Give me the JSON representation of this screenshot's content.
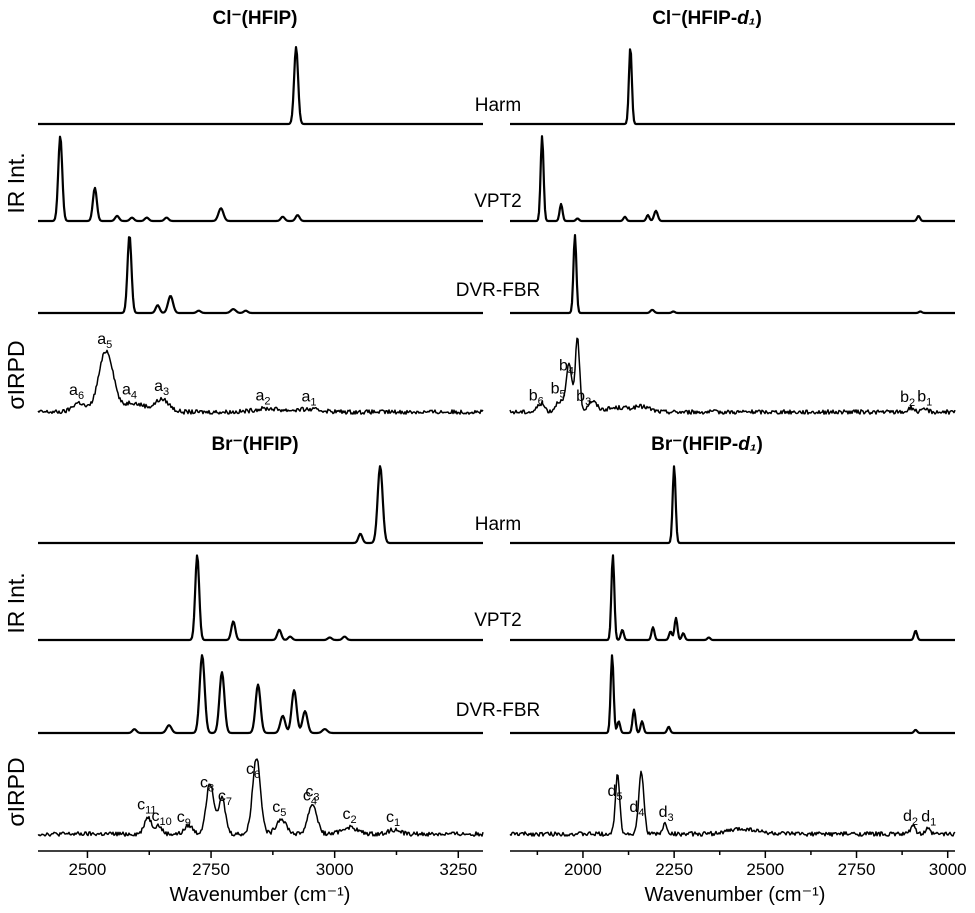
{
  "chart_data": {
    "type": "line",
    "xlabel": "Wavenumber (cm⁻¹)",
    "ylabel_ir": "IR Int.",
    "ylabel_irpd": "σIRPD",
    "panels": [
      {
        "id": "cl_hfip",
        "title_base": "Cl⁻(HFIP)",
        "title_suffix": "",
        "axis": 0,
        "traces": [
          {
            "name": "Harm",
            "peaks": [
              {
                "x": 2922,
                "h": 1.0,
                "w": 4
              }
            ]
          },
          {
            "name": "VPT2",
            "peaks": [
              {
                "x": 2445,
                "h": 1.0,
                "w": 4
              },
              {
                "x": 2515,
                "h": 0.39,
                "w": 4
              },
              {
                "x": 2560,
                "h": 0.06,
                "w": 4
              },
              {
                "x": 2590,
                "h": 0.04,
                "w": 4
              },
              {
                "x": 2620,
                "h": 0.04,
                "w": 4
              },
              {
                "x": 2660,
                "h": 0.04,
                "w": 4
              },
              {
                "x": 2770,
                "h": 0.15,
                "w": 5
              },
              {
                "x": 2895,
                "h": 0.05,
                "w": 4
              },
              {
                "x": 2925,
                "h": 0.07,
                "w": 4
              }
            ]
          },
          {
            "name": "DVR-FBR",
            "peaks": [
              {
                "x": 2585,
                "h": 1.0,
                "w": 4
              },
              {
                "x": 2642,
                "h": 0.1,
                "w": 4
              },
              {
                "x": 2668,
                "h": 0.22,
                "w": 5
              },
              {
                "x": 2725,
                "h": 0.03,
                "w": 4
              },
              {
                "x": 2795,
                "h": 0.05,
                "w": 5
              },
              {
                "x": 2820,
                "h": 0.03,
                "w": 4
              }
            ]
          },
          {
            "name": "σIRPD",
            "peaks": [
              {
                "x": 2482,
                "h": 0.11,
                "w": 12
              },
              {
                "x": 2538,
                "h": 0.72,
                "w": 15
              },
              {
                "x": 2588,
                "h": 0.11,
                "w": 12
              },
              {
                "x": 2612,
                "h": 0.06,
                "w": 10
              },
              {
                "x": 2650,
                "h": 0.15,
                "w": 15
              },
              {
                "x": 2862,
                "h": 0.04,
                "w": 25
              },
              {
                "x": 2945,
                "h": 0.03,
                "w": 30
              }
            ]
          }
        ],
        "labels": [
          {
            "trace": 3,
            "x": 2478,
            "text": "a",
            "sub": "6"
          },
          {
            "trace": 3,
            "x": 2535,
            "text": "a",
            "sub": "5"
          },
          {
            "trace": 3,
            "x": 2585,
            "text": "a",
            "sub": "4"
          },
          {
            "trace": 3,
            "x": 2650,
            "text": "a",
            "sub": "3"
          },
          {
            "trace": 3,
            "x": 2855,
            "text": "a",
            "sub": "2"
          },
          {
            "trace": 3,
            "x": 2948,
            "text": "a",
            "sub": "1"
          }
        ]
      },
      {
        "id": "cl_hfip_d1",
        "title_base": "Cl⁻(HFIP-",
        "title_suffix": "d₁)",
        "axis": 1,
        "traces": [
          {
            "name": "",
            "peaks": [
              {
                "x": 2130,
                "h": 1.0,
                "w": 4
              }
            ]
          },
          {
            "name": "",
            "peaks": [
              {
                "x": 1888,
                "h": 1.0,
                "w": 4
              },
              {
                "x": 1940,
                "h": 0.2,
                "w": 4
              },
              {
                "x": 1985,
                "h": 0.03,
                "w": 4
              },
              {
                "x": 2115,
                "h": 0.05,
                "w": 4
              },
              {
                "x": 2178,
                "h": 0.07,
                "w": 4
              },
              {
                "x": 2200,
                "h": 0.12,
                "w": 5
              },
              {
                "x": 2920,
                "h": 0.06,
                "w": 4
              }
            ]
          },
          {
            "name": "",
            "peaks": [
              {
                "x": 1978,
                "h": 1.0,
                "w": 4
              },
              {
                "x": 2190,
                "h": 0.04,
                "w": 5
              },
              {
                "x": 2248,
                "h": 0.02,
                "w": 4
              },
              {
                "x": 2925,
                "h": 0.02,
                "w": 4
              }
            ]
          },
          {
            "name": "",
            "peaks": [
              {
                "x": 1885,
                "h": 0.1,
                "w": 10
              },
              {
                "x": 1935,
                "h": 0.13,
                "w": 10
              },
              {
                "x": 1962,
                "h": 0.55,
                "w": 8
              },
              {
                "x": 1985,
                "h": 0.85,
                "w": 6
              },
              {
                "x": 2025,
                "h": 0.12,
                "w": 12
              },
              {
                "x": 2100,
                "h": 0.05,
                "w": 40
              },
              {
                "x": 2165,
                "h": 0.05,
                "w": 20
              },
              {
                "x": 2900,
                "h": 0.05,
                "w": 8
              },
              {
                "x": 2940,
                "h": 0.03,
                "w": 8
              }
            ]
          }
        ],
        "labels": [
          {
            "trace": 3,
            "x": 1872,
            "text": "b",
            "sub": "6"
          },
          {
            "trace": 3,
            "x": 1932,
            "text": "b",
            "sub": "5"
          },
          {
            "trace": 3,
            "x": 1955,
            "text": "b",
            "sub": "4"
          },
          {
            "trace": 3,
            "x": 2002,
            "text": "b",
            "sub": "3"
          },
          {
            "trace": 3,
            "x": 2890,
            "text": "b",
            "sub": "2"
          },
          {
            "trace": 3,
            "x": 2937,
            "text": "b",
            "sub": "1"
          }
        ]
      },
      {
        "id": "br_hfip",
        "title_base": "Br⁻(HFIP)",
        "title_suffix": "",
        "axis": 0,
        "traces": [
          {
            "name": "Harm",
            "peaks": [
              {
                "x": 3052,
                "h": 0.12,
                "w": 4
              },
              {
                "x": 3092,
                "h": 1.0,
                "w": 5
              }
            ]
          },
          {
            "name": "VPT2",
            "peaks": [
              {
                "x": 2722,
                "h": 1.0,
                "w": 4
              },
              {
                "x": 2795,
                "h": 0.22,
                "w": 4
              },
              {
                "x": 2888,
                "h": 0.12,
                "w": 4
              },
              {
                "x": 2910,
                "h": 0.04,
                "w": 4
              },
              {
                "x": 2990,
                "h": 0.03,
                "w": 4
              },
              {
                "x": 3020,
                "h": 0.04,
                "w": 4
              }
            ]
          },
          {
            "name": "DVR-FBR",
            "peaks": [
              {
                "x": 2595,
                "h": 0.05,
                "w": 4
              },
              {
                "x": 2665,
                "h": 0.1,
                "w": 5
              },
              {
                "x": 2732,
                "h": 1.0,
                "w": 5
              },
              {
                "x": 2772,
                "h": 0.78,
                "w": 5
              },
              {
                "x": 2845,
                "h": 0.62,
                "w": 5
              },
              {
                "x": 2895,
                "h": 0.22,
                "w": 5
              },
              {
                "x": 2918,
                "h": 0.55,
                "w": 5
              },
              {
                "x": 2940,
                "h": 0.28,
                "w": 5
              },
              {
                "x": 2980,
                "h": 0.05,
                "w": 5
              }
            ]
          },
          {
            "name": "σIRPD",
            "peaks": [
              {
                "x": 2622,
                "h": 0.2,
                "w": 7
              },
              {
                "x": 2643,
                "h": 0.1,
                "w": 7
              },
              {
                "x": 2705,
                "h": 0.1,
                "w": 8
              },
              {
                "x": 2748,
                "h": 0.6,
                "w": 8
              },
              {
                "x": 2772,
                "h": 0.42,
                "w": 7
              },
              {
                "x": 2842,
                "h": 0.9,
                "w": 8
              },
              {
                "x": 2892,
                "h": 0.18,
                "w": 10
              },
              {
                "x": 2955,
                "h": 0.35,
                "w": 9
              },
              {
                "x": 3030,
                "h": 0.08,
                "w": 15
              },
              {
                "x": 3120,
                "h": 0.05,
                "w": 12
              }
            ]
          }
        ],
        "labels": [
          {
            "trace": 3,
            "x": 2620,
            "text": "c",
            "sub": "11"
          },
          {
            "trace": 3,
            "x": 2650,
            "text": "c",
            "sub": "10"
          },
          {
            "trace": 3,
            "x": 2695,
            "text": "c",
            "sub": "9"
          },
          {
            "trace": 3,
            "x": 2742,
            "text": "c",
            "sub": "8"
          },
          {
            "trace": 3,
            "x": 2778,
            "text": "c",
            "sub": "7"
          },
          {
            "trace": 3,
            "x": 2835,
            "text": "c",
            "sub": "6"
          },
          {
            "trace": 3,
            "x": 2888,
            "text": "c",
            "sub": "5"
          },
          {
            "trace": 3,
            "x": 2950,
            "text": "c",
            "sub": "4"
          },
          {
            "trace": 3,
            "x": 2955,
            "text": "c",
            "sub": "3"
          },
          {
            "trace": 3,
            "x": 3030,
            "text": "c",
            "sub": "2"
          },
          {
            "trace": 3,
            "x": 3118,
            "text": "c",
            "sub": "1"
          }
        ]
      },
      {
        "id": "br_hfip_d1",
        "title_base": "Br⁻(HFIP-",
        "title_suffix": "d₁)",
        "axis": 1,
        "traces": [
          {
            "name": "",
            "peaks": [
              {
                "x": 2250,
                "h": 1.0,
                "w": 4
              }
            ]
          },
          {
            "name": "",
            "peaks": [
              {
                "x": 2082,
                "h": 1.0,
                "w": 4
              },
              {
                "x": 2108,
                "h": 0.12,
                "w": 4
              },
              {
                "x": 2192,
                "h": 0.15,
                "w": 4
              },
              {
                "x": 2240,
                "h": 0.1,
                "w": 4
              },
              {
                "x": 2255,
                "h": 0.26,
                "w": 4
              },
              {
                "x": 2275,
                "h": 0.08,
                "w": 4
              },
              {
                "x": 2345,
                "h": 0.03,
                "w": 4
              },
              {
                "x": 2912,
                "h": 0.11,
                "w": 4
              }
            ]
          },
          {
            "name": "",
            "peaks": [
              {
                "x": 2080,
                "h": 1.0,
                "w": 4
              },
              {
                "x": 2098,
                "h": 0.15,
                "w": 4
              },
              {
                "x": 2140,
                "h": 0.3,
                "w": 4
              },
              {
                "x": 2162,
                "h": 0.15,
                "w": 4
              },
              {
                "x": 2235,
                "h": 0.08,
                "w": 4
              },
              {
                "x": 2912,
                "h": 0.04,
                "w": 4
              }
            ]
          },
          {
            "name": "",
            "peaks": [
              {
                "x": 2095,
                "h": 0.7,
                "w": 6
              },
              {
                "x": 2160,
                "h": 0.72,
                "w": 7
              },
              {
                "x": 2225,
                "h": 0.12,
                "w": 6
              },
              {
                "x": 2440,
                "h": 0.06,
                "w": 40
              },
              {
                "x": 2905,
                "h": 0.12,
                "w": 6
              },
              {
                "x": 2945,
                "h": 0.06,
                "w": 6
              }
            ]
          }
        ],
        "labels": [
          {
            "trace": 3,
            "x": 2088,
            "text": "d",
            "sub": "5"
          },
          {
            "trace": 3,
            "x": 2148,
            "text": "d",
            "sub": "4"
          },
          {
            "trace": 3,
            "x": 2228,
            "text": "d",
            "sub": "3"
          },
          {
            "trace": 3,
            "x": 2898,
            "text": "d",
            "sub": "2"
          },
          {
            "trace": 3,
            "x": 2948,
            "text": "d",
            "sub": "1"
          }
        ]
      }
    ],
    "x_axes": [
      {
        "xlim": [
          2400,
          3300
        ],
        "ticks": [
          2500,
          2750,
          3000,
          3250
        ]
      },
      {
        "xlim": [
          1800,
          3020
        ],
        "ticks": [
          2000,
          2250,
          2500,
          2750,
          3000
        ]
      }
    ]
  }
}
